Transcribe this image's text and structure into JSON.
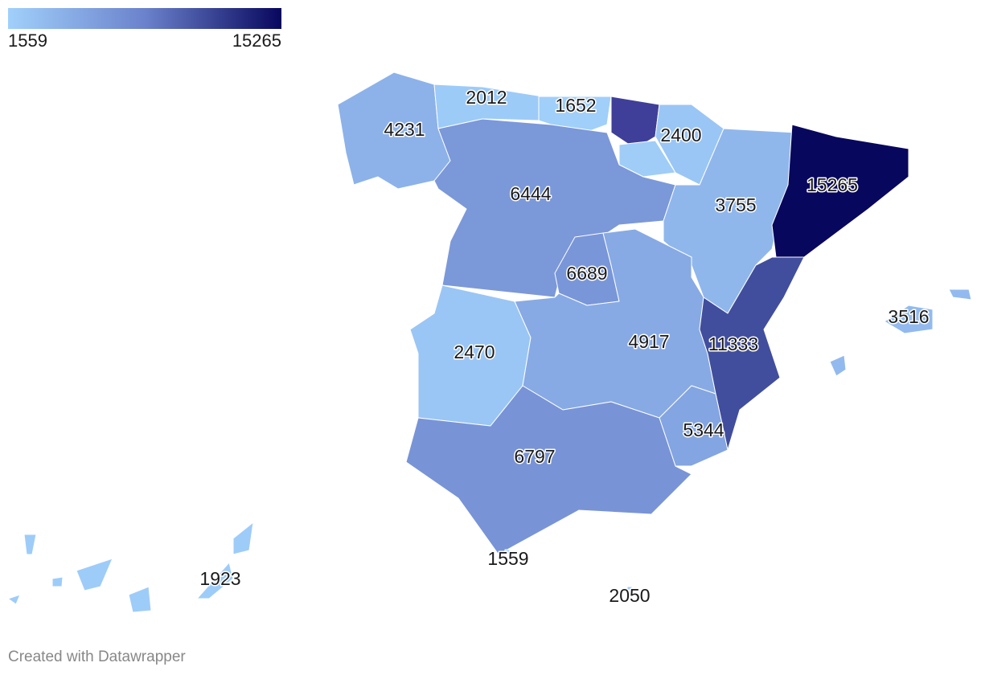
{
  "legend": {
    "colors": [
      "#a1d0fb",
      "#6b82cc",
      "#08075e"
    ],
    "ticks": [
      1559,
      15265
    ]
  },
  "regions": [
    {
      "value": 4231
    },
    {
      "value": 2012
    },
    {
      "value": 1652
    },
    {
      "value": 2400
    },
    {
      "value": 6444
    },
    {
      "value": 3755
    },
    {
      "value": 15265
    },
    {
      "value": 6689
    },
    {
      "value": 2470
    },
    {
      "value": 4917
    },
    {
      "value": 11333
    },
    {
      "value": 5344
    },
    {
      "value": 6797
    },
    {
      "value": 3516
    },
    {
      "value": 1923
    },
    {
      "value": 1559
    },
    {
      "value": 2050
    }
  ],
  "footer": "Created with Datawrapper"
}
